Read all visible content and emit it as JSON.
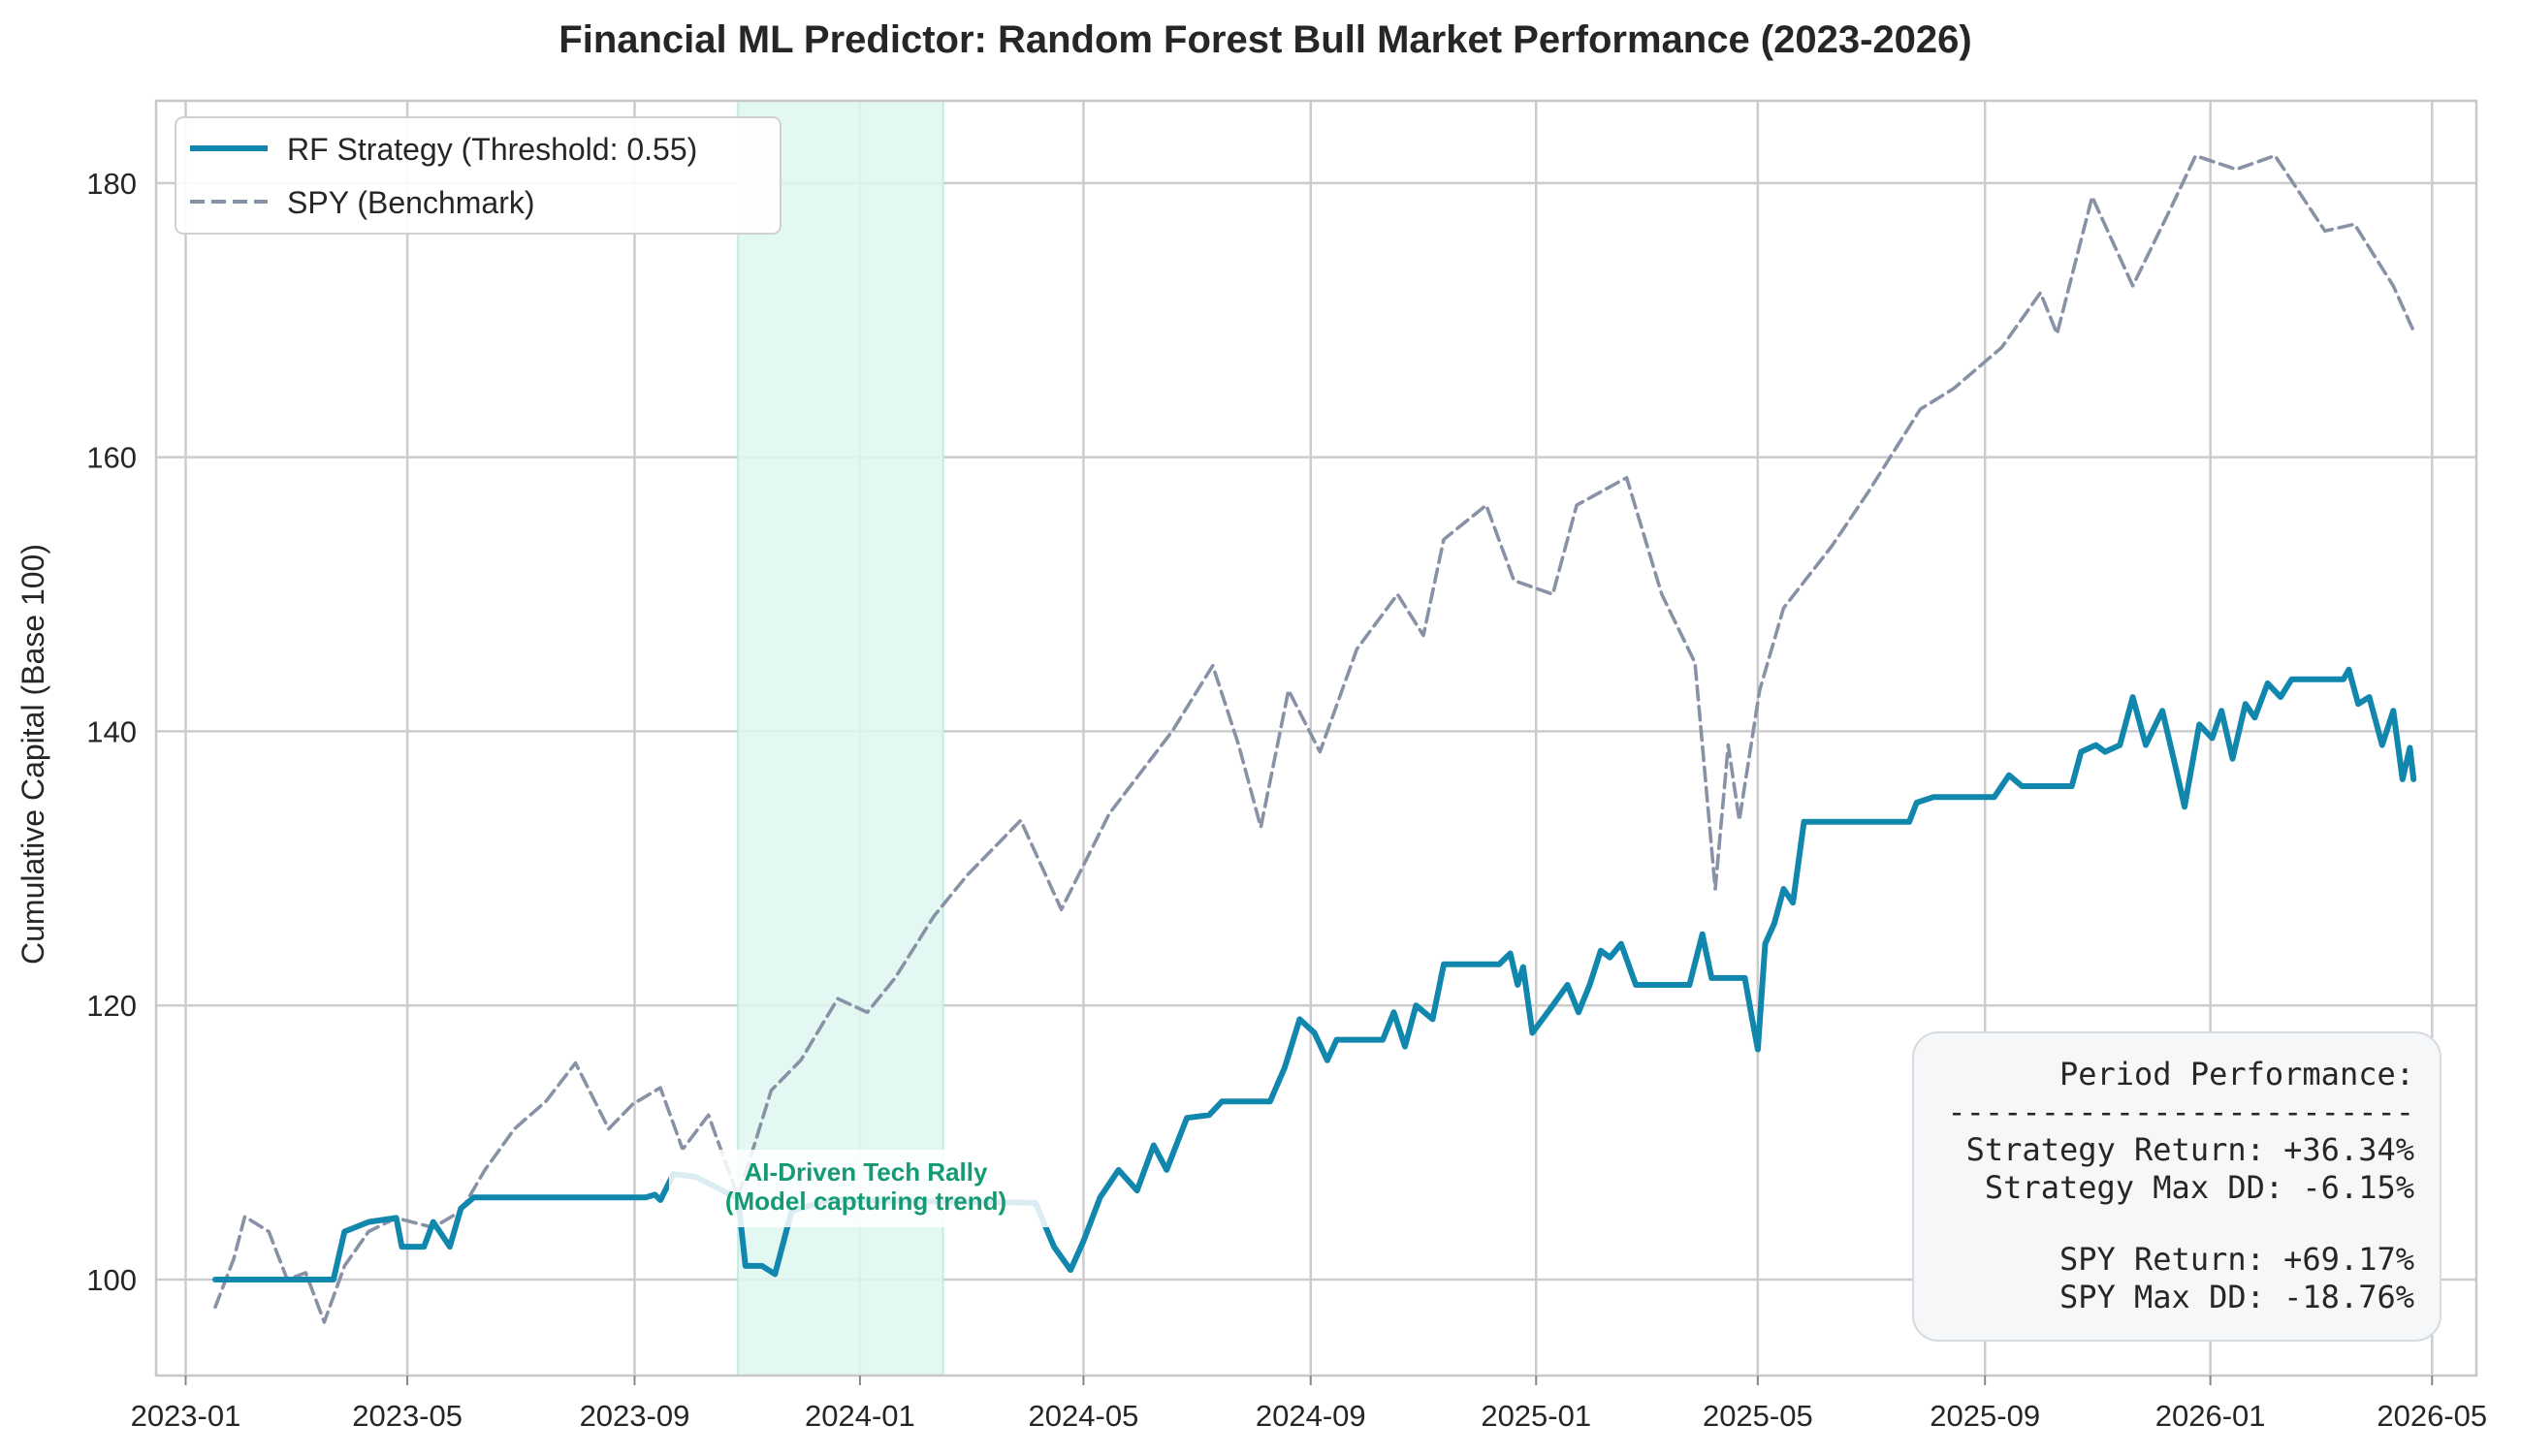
{
  "chart_data": {
    "type": "line",
    "title": "Financial ML Predictor: Random Forest Bull Market Performance (2023-2026)",
    "xlabel": "",
    "ylabel": "Cumulative Capital (Base 100)",
    "x_tick_labels": [
      "2023-01",
      "2023-05",
      "2023-09",
      "2024-01",
      "2024-05",
      "2024-09",
      "2025-01",
      "2025-05",
      "2025-09",
      "2026-01",
      "2026-05"
    ],
    "y_ticks": [
      100,
      120,
      140,
      160,
      180
    ],
    "xlim": [
      "2022-12-16",
      "2026-05-25"
    ],
    "ylim": [
      93,
      186
    ],
    "grid": true,
    "legend_position": "top-left",
    "colors": {
      "strategy": "#1287ad",
      "spy": "#8892a6",
      "shade": "#dff7f1",
      "annotation": "#159a72"
    },
    "shaded_region": {
      "start": "2023-10-27",
      "end": "2024-02-15"
    },
    "annotation": {
      "line1": "AI-Driven Tech Rally",
      "line2": "(Model capturing trend)"
    },
    "series": [
      {
        "name": "RF Strategy (Threshold: 0.55)",
        "style": "solid",
        "points": [
          [
            "2023-01-17",
            100.0
          ],
          [
            "2023-02-20",
            100.0
          ],
          [
            "2023-03-22",
            100.0
          ],
          [
            "2023-03-28",
            103.5
          ],
          [
            "2023-04-10",
            104.2
          ],
          [
            "2023-04-25",
            104.5
          ],
          [
            "2023-04-28",
            102.4
          ],
          [
            "2023-05-10",
            102.4
          ],
          [
            "2023-05-15",
            104.2
          ],
          [
            "2023-05-24",
            102.4
          ],
          [
            "2023-05-30",
            105.2
          ],
          [
            "2023-06-06",
            106.0
          ],
          [
            "2023-09-07",
            106.0
          ],
          [
            "2023-09-12",
            106.2
          ],
          [
            "2023-09-15",
            105.8
          ],
          [
            "2023-09-22",
            107.7
          ],
          [
            "2023-10-04",
            107.5
          ],
          [
            "2023-10-20",
            106.4
          ],
          [
            "2023-10-27",
            105.9
          ],
          [
            "2023-10-31",
            101.0
          ],
          [
            "2023-11-09",
            101.0
          ],
          [
            "2023-11-16",
            100.4
          ],
          [
            "2023-11-25",
            105.0
          ],
          [
            "2023-12-15",
            105.8
          ],
          [
            "2024-04-05",
            105.6
          ],
          [
            "2024-04-15",
            102.4
          ],
          [
            "2024-04-24",
            100.7
          ],
          [
            "2024-05-01",
            102.8
          ],
          [
            "2024-05-10",
            106.0
          ],
          [
            "2024-05-20",
            108.0
          ],
          [
            "2024-05-30",
            106.5
          ],
          [
            "2024-06-08",
            109.8
          ],
          [
            "2024-06-15",
            108.0
          ],
          [
            "2024-06-26",
            111.8
          ],
          [
            "2024-07-08",
            112.0
          ],
          [
            "2024-07-15",
            113.0
          ],
          [
            "2024-08-10",
            113.0
          ],
          [
            "2024-08-18",
            115.5
          ],
          [
            "2024-08-26",
            119.0
          ],
          [
            "2024-09-03",
            118.0
          ],
          [
            "2024-09-10",
            116.0
          ],
          [
            "2024-09-15",
            117.5
          ],
          [
            "2024-10-10",
            117.5
          ],
          [
            "2024-10-16",
            119.5
          ],
          [
            "2024-10-22",
            117.0
          ],
          [
            "2024-10-28",
            120.0
          ],
          [
            "2024-11-06",
            119.0
          ],
          [
            "2024-11-12",
            123.0
          ],
          [
            "2024-12-12",
            123.0
          ],
          [
            "2024-12-18",
            123.8
          ],
          [
            "2024-12-22",
            121.5
          ],
          [
            "2024-12-25",
            122.8
          ],
          [
            "2024-12-30",
            118.0
          ],
          [
            "2025-01-10",
            120.0
          ],
          [
            "2025-01-18",
            121.5
          ],
          [
            "2025-01-24",
            119.5
          ],
          [
            "2025-01-30",
            121.5
          ],
          [
            "2025-02-05",
            124.0
          ],
          [
            "2025-02-10",
            123.5
          ],
          [
            "2025-02-16",
            124.5
          ],
          [
            "2025-02-24",
            121.5
          ],
          [
            "2025-03-25",
            121.5
          ],
          [
            "2025-04-01",
            125.2
          ],
          [
            "2025-04-06",
            122.0
          ],
          [
            "2025-04-12",
            122.0
          ],
          [
            "2025-04-24",
            122.0
          ],
          [
            "2025-04-28",
            119.0
          ],
          [
            "2025-05-01",
            116.8
          ],
          [
            "2025-05-05",
            124.5
          ],
          [
            "2025-05-10",
            126.0
          ],
          [
            "2025-05-15",
            128.5
          ],
          [
            "2025-05-20",
            127.5
          ],
          [
            "2025-05-26",
            133.4
          ],
          [
            "2025-07-22",
            133.4
          ],
          [
            "2025-07-26",
            134.8
          ],
          [
            "2025-08-04",
            135.2
          ],
          [
            "2025-09-06",
            135.2
          ],
          [
            "2025-09-14",
            136.8
          ],
          [
            "2025-09-21",
            136.0
          ],
          [
            "2025-10-18",
            136.0
          ],
          [
            "2025-10-23",
            138.5
          ],
          [
            "2025-10-31",
            139.0
          ],
          [
            "2025-11-05",
            138.5
          ],
          [
            "2025-11-13",
            139.0
          ],
          [
            "2025-11-20",
            142.5
          ],
          [
            "2025-11-27",
            139.0
          ],
          [
            "2025-12-06",
            141.5
          ],
          [
            "2025-12-13",
            137.5
          ],
          [
            "2025-12-18",
            134.5
          ],
          [
            "2025-12-26",
            140.5
          ],
          [
            "2026-01-02",
            139.5
          ],
          [
            "2026-01-07",
            141.5
          ],
          [
            "2026-01-13",
            138.0
          ],
          [
            "2026-01-20",
            142.0
          ],
          [
            "2026-01-25",
            141.0
          ],
          [
            "2026-02-01",
            143.5
          ],
          [
            "2026-02-08",
            142.5
          ],
          [
            "2026-02-14",
            143.8
          ],
          [
            "2026-03-14",
            143.8
          ],
          [
            "2026-03-17",
            144.5
          ],
          [
            "2026-03-22",
            142.0
          ],
          [
            "2026-03-28",
            142.5
          ],
          [
            "2026-04-04",
            139.0
          ],
          [
            "2026-04-10",
            141.5
          ],
          [
            "2026-04-15",
            136.5
          ],
          [
            "2026-04-19",
            138.8
          ],
          [
            "2026-04-21",
            136.5
          ]
        ]
      },
      {
        "name": "SPY (Benchmark)",
        "style": "dashed",
        "points": [
          [
            "2023-01-17",
            98.0
          ],
          [
            "2023-01-27",
            101.5
          ],
          [
            "2023-02-02",
            104.6
          ],
          [
            "2023-02-15",
            103.5
          ],
          [
            "2023-02-25",
            100.0
          ],
          [
            "2023-03-07",
            100.5
          ],
          [
            "2023-03-17",
            96.9
          ],
          [
            "2023-03-28",
            101.0
          ],
          [
            "2023-04-10",
            103.5
          ],
          [
            "2023-04-25",
            104.5
          ],
          [
            "2023-05-15",
            103.8
          ],
          [
            "2023-05-30",
            105.0
          ],
          [
            "2023-06-12",
            108.0
          ],
          [
            "2023-06-28",
            111.0
          ],
          [
            "2023-07-15",
            113.0
          ],
          [
            "2023-07-31",
            115.8
          ],
          [
            "2023-08-18",
            111.0
          ],
          [
            "2023-08-31",
            112.8
          ],
          [
            "2023-09-15",
            114.0
          ],
          [
            "2023-09-27",
            109.5
          ],
          [
            "2023-10-11",
            112.0
          ],
          [
            "2023-10-27",
            106.0
          ],
          [
            "2023-11-14",
            113.8
          ],
          [
            "2023-11-30",
            116.0
          ],
          [
            "2023-12-20",
            120.5
          ],
          [
            "2024-01-05",
            119.5
          ],
          [
            "2024-01-20",
            122.0
          ],
          [
            "2024-02-10",
            126.5
          ],
          [
            "2024-02-28",
            129.5
          ],
          [
            "2024-03-28",
            133.5
          ],
          [
            "2024-04-19",
            127.0
          ],
          [
            "2024-05-15",
            134.0
          ],
          [
            "2024-06-18",
            140.0
          ],
          [
            "2024-07-10",
            144.8
          ],
          [
            "2024-07-24",
            139.0
          ],
          [
            "2024-08-05",
            133.0
          ],
          [
            "2024-08-20",
            143.0
          ],
          [
            "2024-09-06",
            138.5
          ],
          [
            "2024-09-26",
            146.0
          ],
          [
            "2024-10-18",
            150.0
          ],
          [
            "2024-11-01",
            147.0
          ],
          [
            "2024-11-12",
            154.0
          ],
          [
            "2024-12-05",
            156.5
          ],
          [
            "2024-12-20",
            151.0
          ],
          [
            "2025-01-10",
            150.0
          ],
          [
            "2025-01-23",
            156.5
          ],
          [
            "2025-02-19",
            158.5
          ],
          [
            "2025-03-10",
            150.0
          ],
          [
            "2025-03-28",
            145.0
          ],
          [
            "2025-04-08",
            128.5
          ],
          [
            "2025-04-15",
            139.0
          ],
          [
            "2025-04-21",
            133.5
          ],
          [
            "2025-05-02",
            143.0
          ],
          [
            "2025-05-15",
            149.0
          ],
          [
            "2025-06-10",
            153.5
          ],
          [
            "2025-06-30",
            157.5
          ],
          [
            "2025-07-28",
            163.5
          ],
          [
            "2025-08-15",
            165.0
          ],
          [
            "2025-09-10",
            168.0
          ],
          [
            "2025-10-01",
            172.0
          ],
          [
            "2025-10-10",
            169.0
          ],
          [
            "2025-10-29",
            179.0
          ],
          [
            "2025-11-20",
            172.5
          ],
          [
            "2025-12-10",
            178.0
          ],
          [
            "2025-12-24",
            182.0
          ],
          [
            "2026-01-15",
            181.0
          ],
          [
            "2026-02-05",
            182.0
          ],
          [
            "2026-03-04",
            176.5
          ],
          [
            "2026-03-20",
            177.0
          ],
          [
            "2026-04-10",
            172.5
          ],
          [
            "2026-04-21",
            169.2
          ]
        ]
      }
    ],
    "stats_box": {
      "heading": "Period Performance:",
      "divider": "-------------------------",
      "strategy_return": "Strategy Return: +36.34%",
      "strategy_max_dd": "Strategy Max DD: -6.15%",
      "spy_return": "SPY Return:      +69.17%",
      "spy_max_dd": "SPY Max DD:      -18.76%"
    }
  }
}
